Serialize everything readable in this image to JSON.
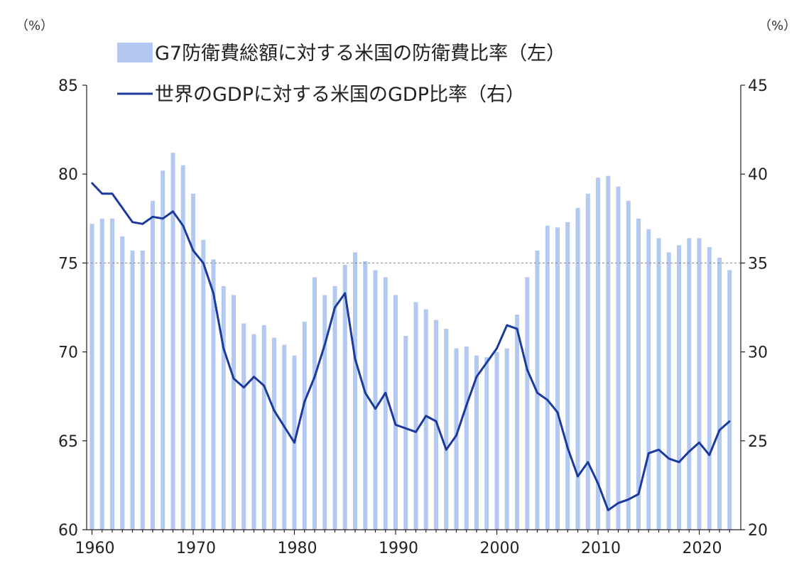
{
  "chart_data": {
    "type": "bar+line",
    "units": {
      "left": "（%）",
      "right": "（%）"
    },
    "legend": {
      "bar": "G7防衛費総額に対する米国の防衛費比率（左）",
      "line": "世界のGDPに対する米国のGDP比率（右）",
      "placement": "top"
    },
    "x_ticks": [
      "1960",
      "1970",
      "1980",
      "1990",
      "2000",
      "2010",
      "2020"
    ],
    "left_axis": {
      "ylim": [
        60,
        85
      ],
      "ticks": [
        "60",
        "65",
        "70",
        "75",
        "80",
        "85"
      ]
    },
    "right_axis": {
      "ylim": [
        20,
        45
      ],
      "ticks": [
        "20",
        "25",
        "30",
        "35",
        "40",
        "45"
      ]
    },
    "reference_line": {
      "axis": "left",
      "value": 75
    },
    "years": [
      1960,
      1961,
      1962,
      1963,
      1964,
      1965,
      1966,
      1967,
      1968,
      1969,
      1970,
      1971,
      1972,
      1973,
      1974,
      1975,
      1976,
      1977,
      1978,
      1979,
      1980,
      1981,
      1982,
      1983,
      1984,
      1985,
      1986,
      1987,
      1988,
      1989,
      1990,
      1991,
      1992,
      1993,
      1994,
      1995,
      1996,
      1997,
      1998,
      1999,
      2000,
      2001,
      2002,
      2003,
      2004,
      2005,
      2006,
      2007,
      2008,
      2009,
      2010,
      2011,
      2012,
      2013,
      2014,
      2015,
      2016,
      2017,
      2018,
      2019,
      2020,
      2021,
      2022,
      2023
    ],
    "series": [
      {
        "name": "G7防衛費総額に対する米国の防衛費比率（左）",
        "type": "bar",
        "axis": "left",
        "color": "#b4c9f2",
        "values": [
          77.2,
          77.5,
          77.5,
          76.5,
          75.7,
          75.7,
          78.5,
          80.2,
          81.2,
          80.5,
          78.9,
          76.3,
          75.2,
          73.7,
          73.2,
          71.6,
          71.0,
          71.5,
          70.8,
          70.4,
          69.8,
          71.7,
          74.2,
          73.2,
          73.7,
          74.9,
          75.6,
          75.1,
          74.6,
          74.2,
          73.2,
          70.9,
          72.8,
          72.4,
          71.8,
          71.3,
          70.2,
          70.3,
          69.8,
          69.7,
          70.0,
          70.2,
          72.1,
          74.2,
          75.7,
          77.1,
          77.0,
          77.3,
          78.1,
          78.9,
          79.8,
          79.9,
          79.3,
          78.5,
          77.5,
          76.9,
          76.4,
          75.6,
          76.0,
          76.4,
          76.4,
          75.9,
          75.3,
          74.6
        ]
      },
      {
        "name": "世界のGDPに対する米国のGDP比率（右）",
        "type": "line",
        "axis": "right",
        "color": "#1c3a9c",
        "values": [
          39.5,
          38.9,
          38.9,
          38.1,
          37.3,
          37.2,
          37.6,
          37.5,
          37.9,
          37.1,
          35.7,
          35.0,
          33.3,
          30.2,
          28.5,
          28.0,
          28.6,
          28.1,
          26.7,
          25.8,
          24.9,
          27.2,
          28.6,
          30.4,
          32.5,
          33.3,
          29.6,
          27.7,
          26.8,
          27.7,
          25.9,
          25.7,
          25.5,
          26.4,
          26.1,
          24.5,
          25.3,
          27.0,
          28.6,
          29.4,
          30.2,
          31.5,
          31.3,
          29.0,
          27.7,
          27.3,
          26.6,
          24.6,
          23.0,
          23.8,
          22.6,
          21.1,
          21.5,
          21.7,
          22.0,
          24.3,
          24.5,
          24.0,
          23.8,
          24.4,
          24.9,
          24.2,
          25.6,
          26.1
        ]
      }
    ]
  }
}
